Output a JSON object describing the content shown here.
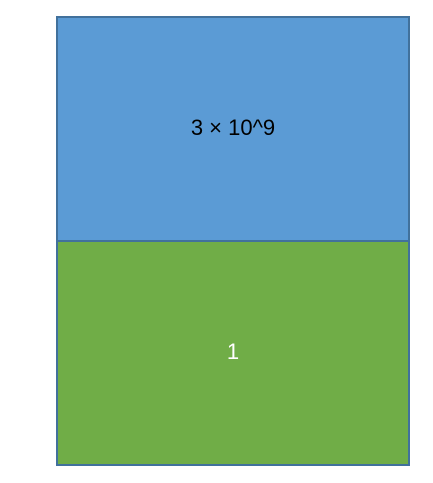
{
  "blocks": [
    {
      "label": "3 × 10^9",
      "fill": "#5b9bd5",
      "text_color": "#000000"
    },
    {
      "label": "1",
      "fill": "#70ad47",
      "text_color": "#ffffff"
    }
  ],
  "border_color": "#41719c"
}
